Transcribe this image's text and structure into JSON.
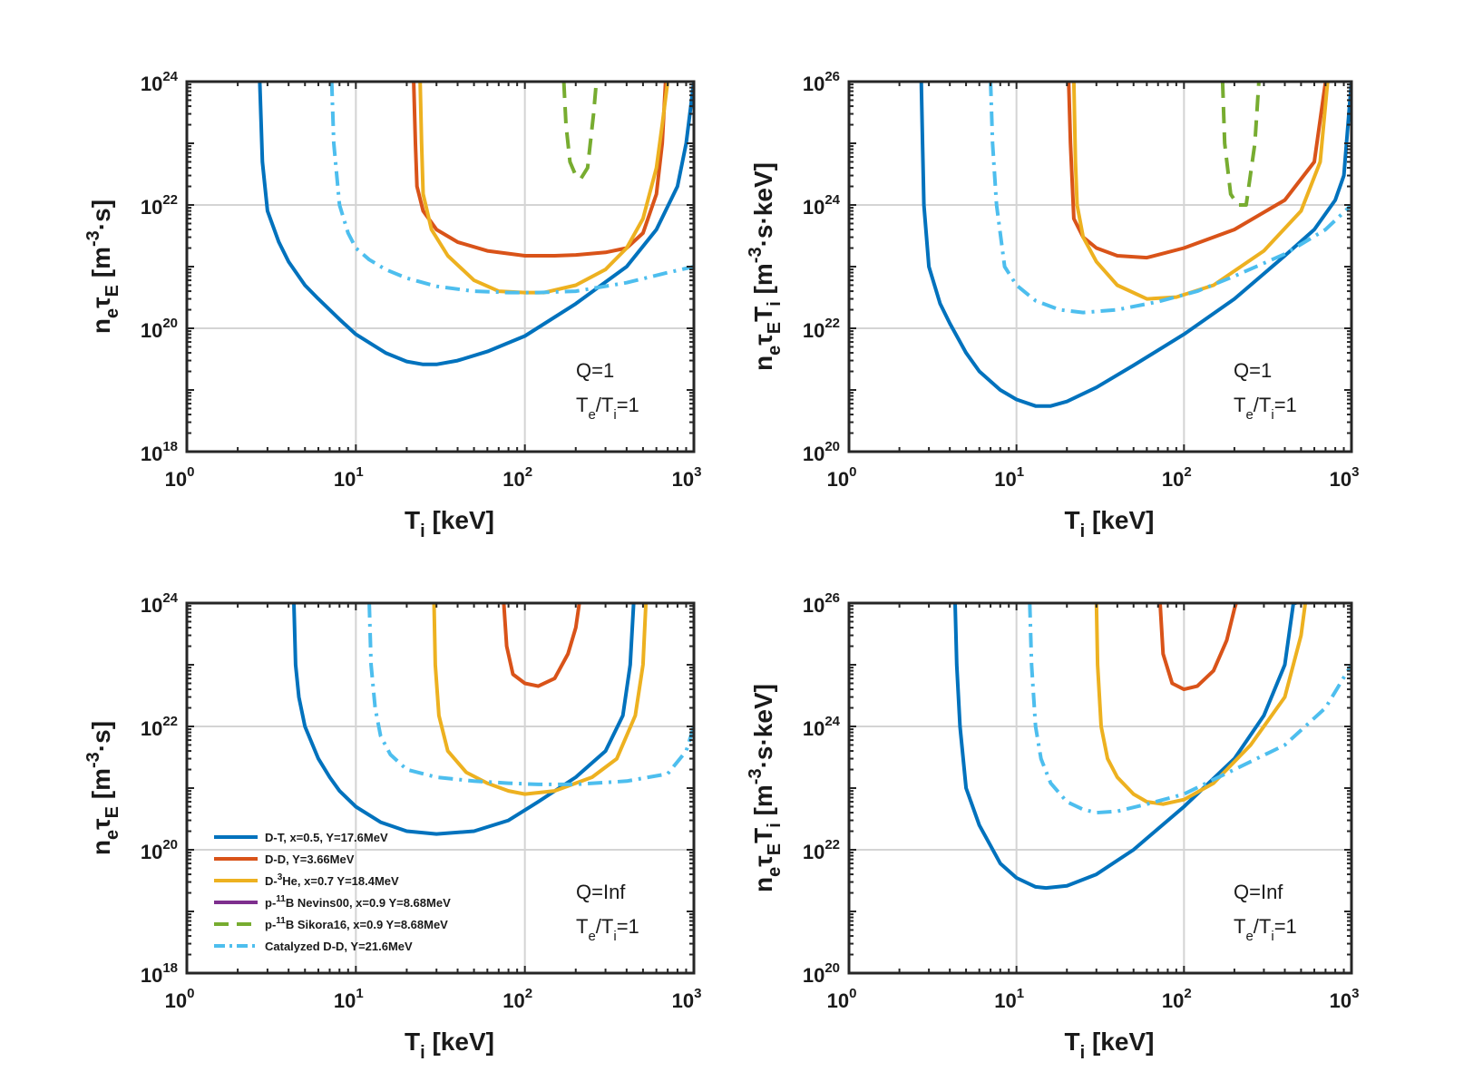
{
  "chart_data": [
    {
      "type": "line",
      "x_scale": "log",
      "y_scale": "log",
      "xlim": [
        1,
        1000
      ],
      "ylim": [
        1e+18,
        1e+24
      ],
      "xlabel": {
        "main": "T",
        "sub": "i",
        "unit": " [keV]"
      },
      "ylabel": {
        "parts": [
          "n",
          "e",
          "τ",
          "E",
          " [m",
          "-3",
          "·s]"
        ]
      },
      "x_ticks": [
        {
          "base": "10",
          "exp": "0",
          "value": 1
        },
        {
          "base": "10",
          "exp": "1",
          "value": 10
        },
        {
          "base": "10",
          "exp": "2",
          "value": 100
        },
        {
          "base": "10",
          "exp": "3",
          "value": 1000
        }
      ],
      "y_ticks": [
        {
          "base": "10",
          "exp": "18",
          "value": 1e+18
        },
        {
          "base": "10",
          "exp": "20",
          "value": 1e+20
        },
        {
          "base": "10",
          "exp": "22",
          "value": 1e+22
        },
        {
          "base": "10",
          "exp": "24",
          "value": 1e+24
        }
      ],
      "annotation": {
        "line1": "Q=1",
        "line2": {
          "a": "T",
          "b": "e",
          "c": "/T",
          "d": "i",
          "e": "=1"
        }
      },
      "grid": true,
      "series": [
        {
          "key": "dt",
          "color": "#0072BD",
          "dash": "solid",
          "x": [
            2.7,
            2.8,
            3,
            3.5,
            4,
            5,
            6,
            8,
            10,
            15,
            20,
            25,
            30,
            40,
            60,
            100,
            200,
            400,
            600,
            800,
            900,
            1000
          ],
          "y": [
            1e+24,
            5e+22,
            8e+21,
            2.5e+21,
            1.2e+21,
            5e+20,
            3e+20,
            1.4e+20,
            8e+19,
            4e+19,
            2.9e+19,
            2.6e+19,
            2.6e+19,
            3e+19,
            4.2e+19,
            7.5e+19,
            2.5e+20,
            1e+21,
            4e+21,
            2e+22,
            1e+23,
            1e+24
          ]
        },
        {
          "key": "dd",
          "color": "#D95319",
          "dash": "solid",
          "x": [
            22,
            22.5,
            23,
            25,
            30,
            40,
            60,
            100,
            150,
            200,
            300,
            400,
            500,
            600,
            650,
            680
          ],
          "y": [
            1e+24,
            1e+23,
            2e+22,
            8e+21,
            4e+21,
            2.5e+21,
            1.8e+21,
            1.5e+21,
            1.5e+21,
            1.55e+21,
            1.7e+21,
            2e+21,
            3.5e+21,
            1.5e+22,
            1e+23,
            1e+24
          ]
        },
        {
          "key": "dhe3",
          "color": "#EDB120",
          "dash": "solid",
          "x": [
            24,
            24.5,
            25,
            28,
            35,
            50,
            70,
            100,
            130,
            200,
            300,
            400,
            500,
            600,
            650,
            700
          ],
          "y": [
            1e+24,
            1e+23,
            1.5e+22,
            4e+21,
            1.5e+21,
            6e+20,
            4e+20,
            3.8e+20,
            3.8e+20,
            5e+20,
            9e+20,
            2e+21,
            6e+21,
            4e+22,
            2e+23,
            1e+24
          ]
        },
        {
          "key": "pb11s",
          "color": "#77AC30",
          "dash": "dash",
          "x": [
            170,
            175,
            185,
            200,
            215,
            235,
            255,
            265
          ],
          "y": [
            1e+24,
            2e+23,
            5e+22,
            3e+22,
            2.7e+22,
            4e+22,
            3e+23,
            1e+24
          ]
        },
        {
          "key": "cdd",
          "color": "#4DBEEE",
          "dash": "dashdot",
          "x": [
            7.2,
            7.4,
            8,
            9,
            10,
            12,
            15,
            20,
            30,
            50,
            80,
            120,
            200,
            400,
            700,
            1000
          ],
          "y": [
            1e+24,
            1e+23,
            1e+22,
            3.5e+21,
            2e+21,
            1.3e+21,
            9e+20,
            6.5e+20,
            4.8e+20,
            4e+20,
            3.8e+20,
            3.8e+20,
            4e+20,
            5.5e+20,
            8e+20,
            1e+21
          ]
        }
      ]
    },
    {
      "type": "line",
      "x_scale": "log",
      "y_scale": "log",
      "xlim": [
        1,
        1000
      ],
      "ylim": [
        1e+20,
        1e+26
      ],
      "xlabel": {
        "main": "T",
        "sub": "i",
        "unit": " [keV]"
      },
      "ylabel": {
        "parts": [
          "n",
          "e",
          "τ",
          "E",
          "T",
          "i",
          " [m",
          "-3",
          "·s·keV]"
        ]
      },
      "x_ticks": [
        {
          "base": "10",
          "exp": "0",
          "value": 1
        },
        {
          "base": "10",
          "exp": "1",
          "value": 10
        },
        {
          "base": "10",
          "exp": "2",
          "value": 100
        },
        {
          "base": "10",
          "exp": "3",
          "value": 1000
        }
      ],
      "y_ticks": [
        {
          "base": "10",
          "exp": "20",
          "value": 1e+20
        },
        {
          "base": "10",
          "exp": "22",
          "value": 1e+22
        },
        {
          "base": "10",
          "exp": "24",
          "value": 1e+24
        },
        {
          "base": "10",
          "exp": "26",
          "value": 1e+26
        }
      ],
      "annotation": {
        "line1": "Q=1",
        "line2": {
          "a": "T",
          "b": "e",
          "c": "/T",
          "d": "i",
          "e": "=1"
        }
      },
      "grid": true,
      "series": [
        {
          "key": "dt",
          "color": "#0072BD",
          "dash": "solid",
          "x": [
            2.7,
            2.75,
            2.8,
            3,
            3.5,
            4,
            5,
            6,
            8,
            10,
            13,
            16,
            20,
            30,
            50,
            100,
            200,
            400,
            600,
            800,
            900,
            1000
          ],
          "y": [
            1e+26,
            1e+25,
            1e+24,
            1e+23,
            2.5e+22,
            1.2e+22,
            4e+21,
            2e+21,
            1e+21,
            7e+20,
            5.5e+20,
            5.5e+20,
            6.5e+20,
            1.1e+21,
            2.5e+21,
            8e+21,
            3e+22,
            1.5e+23,
            4e+23,
            1.2e+24,
            3e+24,
            1e+26
          ]
        },
        {
          "key": "dd",
          "color": "#D95319",
          "dash": "solid",
          "x": [
            20.5,
            21,
            22,
            25,
            30,
            40,
            60,
            100,
            200,
            400,
            600,
            700
          ],
          "y": [
            1e+26,
            1e+25,
            6e+23,
            3e+23,
            2e+23,
            1.5e+23,
            1.4e+23,
            2e+23,
            4e+23,
            1.2e+24,
            5e+24,
            1e+26
          ]
        },
        {
          "key": "dhe3",
          "color": "#EDB120",
          "dash": "solid",
          "x": [
            22,
            22.5,
            23,
            25,
            30,
            40,
            60,
            90,
            150,
            300,
            500,
            650,
            720
          ],
          "y": [
            1e+26,
            5e+24,
            1e+24,
            3e+23,
            1.2e+23,
            5e+22,
            3e+22,
            3.2e+22,
            5e+22,
            1.8e+23,
            8e+23,
            5e+24,
            1e+26
          ]
        },
        {
          "key": "pb11s",
          "color": "#77AC30",
          "dash": "dash",
          "x": [
            170,
            175,
            190,
            210,
            235,
            265,
            280
          ],
          "y": [
            1e+26,
            1e+25,
            1.5e+24,
            1e+24,
            1e+24,
            1e+25,
            1e+26
          ]
        },
        {
          "key": "cdd",
          "color": "#4DBEEE",
          "dash": "dashdot",
          "x": [
            7,
            7.2,
            7.6,
            8.5,
            10,
            13,
            18,
            25,
            40,
            70,
            120,
            200,
            400,
            700,
            1000
          ],
          "y": [
            1e+26,
            1e+25,
            1e+24,
            1e+23,
            5e+22,
            2.8e+22,
            2e+22,
            1.8e+22,
            2e+22,
            2.7e+22,
            4e+22,
            7e+22,
            1.6e+23,
            4e+23,
            1e+24
          ]
        }
      ]
    },
    {
      "type": "line",
      "x_scale": "log",
      "y_scale": "log",
      "xlim": [
        1,
        1000
      ],
      "ylim": [
        1e+18,
        1e+24
      ],
      "xlabel": {
        "main": "T",
        "sub": "i",
        "unit": " [keV]"
      },
      "ylabel": {
        "parts": [
          "n",
          "e",
          "τ",
          "E",
          " [m",
          "-3",
          "·s]"
        ]
      },
      "x_ticks": [
        {
          "base": "10",
          "exp": "0",
          "value": 1
        },
        {
          "base": "10",
          "exp": "1",
          "value": 10
        },
        {
          "base": "10",
          "exp": "2",
          "value": 100
        },
        {
          "base": "10",
          "exp": "3",
          "value": 1000
        }
      ],
      "y_ticks": [
        {
          "base": "10",
          "exp": "18",
          "value": 1e+18
        },
        {
          "base": "10",
          "exp": "20",
          "value": 1e+20
        },
        {
          "base": "10",
          "exp": "22",
          "value": 1e+22
        },
        {
          "base": "10",
          "exp": "24",
          "value": 1e+24
        }
      ],
      "annotation": {
        "line1": "Q=Inf",
        "line2": {
          "a": "T",
          "b": "e",
          "c": "/T",
          "d": "i",
          "e": "=1"
        }
      },
      "grid": true,
      "legend": {
        "position": "lower-left",
        "entries": [
          {
            "key": "dt",
            "parts": [
              "D-T, x=0.5, Y=17.6MeV"
            ]
          },
          {
            "key": "dd",
            "parts": [
              "D-D, Y=3.66MeV"
            ]
          },
          {
            "key": "dhe3",
            "parts": [
              "D-",
              "3",
              "He, x=0.7 Y=18.4MeV"
            ]
          },
          {
            "key": "pb11n",
            "parts": [
              "p-",
              "11",
              "B Nevins00, x=0.9 Y=8.68MeV"
            ]
          },
          {
            "key": "pb11s",
            "parts": [
              "p-",
              "11",
              "B Sikora16, x=0.9 Y=8.68MeV"
            ]
          },
          {
            "key": "cdd",
            "parts": [
              "Catalyzed D-D, Y=21.6MeV"
            ]
          }
        ]
      },
      "series": [
        {
          "key": "dt",
          "color": "#0072BD",
          "dash": "solid",
          "x": [
            4.3,
            4.4,
            4.6,
            5,
            6,
            7,
            8,
            10,
            14,
            20,
            30,
            50,
            80,
            120,
            200,
            300,
            380,
            420,
            440
          ],
          "y": [
            1e+24,
            1e+23,
            3e+22,
            1e+22,
            3e+21,
            1.5e+21,
            9e+20,
            5e+20,
            2.8e+20,
            2e+20,
            1.8e+20,
            2e+20,
            3e+20,
            6e+20,
            1.5e+21,
            4e+21,
            1.5e+22,
            1e+23,
            1e+24
          ]
        },
        {
          "key": "dd",
          "color": "#D95319",
          "dash": "solid",
          "x": [
            75,
            78,
            85,
            100,
            120,
            150,
            180,
            200,
            210
          ],
          "y": [
            1e+24,
            2e+23,
            7e+22,
            5e+22,
            4.5e+22,
            6e+22,
            1.5e+23,
            4e+23,
            1e+24
          ]
        },
        {
          "key": "dhe3",
          "color": "#EDB120",
          "dash": "solid",
          "x": [
            29,
            29.5,
            31,
            35,
            45,
            60,
            80,
            100,
            150,
            250,
            350,
            450,
            500,
            520
          ],
          "y": [
            1e+24,
            1e+23,
            1.5e+22,
            4e+21,
            1.8e+21,
            1.2e+21,
            9e+20,
            8e+20,
            9e+20,
            1.5e+21,
            3e+21,
            1.5e+22,
            1e+23,
            1e+24
          ]
        },
        {
          "key": "cdd",
          "color": "#4DBEEE",
          "dash": "dashdot",
          "x": [
            12,
            12.3,
            13,
            14,
            16,
            20,
            30,
            50,
            80,
            120,
            200,
            400,
            700,
            900,
            1000
          ],
          "y": [
            1e+24,
            1e+23,
            2e+22,
            7e+21,
            3.5e+21,
            2e+21,
            1.5e+21,
            1.3e+21,
            1.2e+21,
            1.15e+21,
            1.15e+21,
            1.3e+21,
            1.7e+21,
            4e+21,
            1e+22
          ]
        }
      ]
    },
    {
      "type": "line",
      "x_scale": "log",
      "y_scale": "log",
      "xlim": [
        1,
        1000
      ],
      "ylim": [
        1e+20,
        1e+26
      ],
      "xlabel": {
        "main": "T",
        "sub": "i",
        "unit": " [keV]"
      },
      "ylabel": {
        "parts": [
          "n",
          "e",
          "τ",
          "E",
          "T",
          "i",
          " [m",
          "-3",
          "·s·keV]"
        ]
      },
      "x_ticks": [
        {
          "base": "10",
          "exp": "0",
          "value": 1
        },
        {
          "base": "10",
          "exp": "1",
          "value": 10
        },
        {
          "base": "10",
          "exp": "2",
          "value": 100
        },
        {
          "base": "10",
          "exp": "3",
          "value": 1000
        }
      ],
      "y_ticks": [
        {
          "base": "10",
          "exp": "20",
          "value": 1e+20
        },
        {
          "base": "10",
          "exp": "22",
          "value": 1e+22
        },
        {
          "base": "10",
          "exp": "24",
          "value": 1e+24
        },
        {
          "base": "10",
          "exp": "26",
          "value": 1e+26
        }
      ],
      "annotation": {
        "line1": "Q=Inf",
        "line2": {
          "a": "T",
          "b": "e",
          "c": "/T",
          "d": "i",
          "e": "=1"
        }
      },
      "grid": true,
      "series": [
        {
          "key": "dt",
          "color": "#0072BD",
          "dash": "solid",
          "x": [
            4.3,
            4.4,
            4.6,
            5,
            6,
            8,
            10,
            13,
            15,
            20,
            30,
            50,
            100,
            200,
            300,
            400,
            450,
            470
          ],
          "y": [
            1e+26,
            1e+25,
            1e+24,
            1e+23,
            2.5e+22,
            6e+21,
            3.5e+21,
            2.5e+21,
            2.4e+21,
            2.6e+21,
            4e+21,
            1e+22,
            5e+22,
            3e+23,
            1.5e+24,
            1e+25,
            1e+26,
            1e+26
          ]
        },
        {
          "key": "dd",
          "color": "#D95319",
          "dash": "solid",
          "x": [
            72,
            75,
            85,
            100,
            120,
            150,
            180,
            200,
            205
          ],
          "y": [
            1e+26,
            1.5e+25,
            5e+24,
            4e+24,
            4.5e+24,
            8e+24,
            2.5e+25,
            8e+25,
            1e+26
          ]
        },
        {
          "key": "dhe3",
          "color": "#EDB120",
          "dash": "solid",
          "x": [
            30,
            30.5,
            32,
            35,
            40,
            50,
            60,
            75,
            100,
            150,
            250,
            400,
            500,
            530
          ],
          "y": [
            1e+26,
            1e+25,
            1e+24,
            3e+23,
            1.5e+23,
            8e+22,
            6e+22,
            5.5e+22,
            6.5e+22,
            1.2e+23,
            5e+23,
            3e+24,
            3e+25,
            1e+26
          ]
        },
        {
          "key": "cdd",
          "color": "#4DBEEE",
          "dash": "dashdot",
          "x": [
            12,
            12.3,
            13,
            14,
            16,
            20,
            25,
            30,
            40,
            60,
            100,
            200,
            400,
            700,
            1000
          ],
          "y": [
            1e+26,
            1e+25,
            1e+24,
            3e+23,
            1.2e+23,
            6e+22,
            4.5e+22,
            4e+22,
            4.2e+22,
            5.5e+22,
            8e+22,
            2e+23,
            5e+23,
            2e+24,
            1e+25
          ]
        }
      ]
    }
  ]
}
